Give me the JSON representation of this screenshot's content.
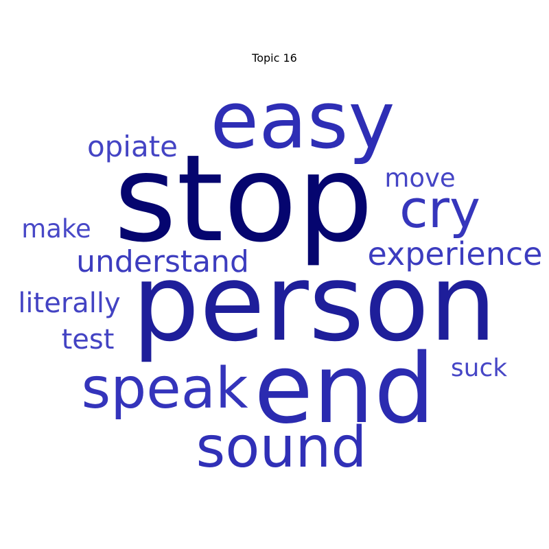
{
  "chart_data": {
    "type": "wordcloud",
    "title": "Topic 16",
    "words": [
      {
        "text": "stop",
        "weight": 1.0,
        "color": "#05056f"
      },
      {
        "text": "person",
        "weight": 0.86,
        "color": "#1e1e9a"
      },
      {
        "text": "end",
        "weight": 0.7,
        "color": "#2b2bb0"
      },
      {
        "text": "easy",
        "weight": 0.58,
        "color": "#2e2eb5"
      },
      {
        "text": "speak",
        "weight": 0.42,
        "color": "#3434bb"
      },
      {
        "text": "sound",
        "weight": 0.42,
        "color": "#3030b7"
      },
      {
        "text": "cry",
        "weight": 0.38,
        "color": "#3636bc"
      },
      {
        "text": "experience",
        "weight": 0.24,
        "color": "#3c3cbf"
      },
      {
        "text": "understand",
        "weight": 0.23,
        "color": "#3d3dbf"
      },
      {
        "text": "opiate",
        "weight": 0.2,
        "color": "#4444c4"
      },
      {
        "text": "literally",
        "weight": 0.2,
        "color": "#4343c3"
      },
      {
        "text": "test",
        "weight": 0.19,
        "color": "#4343c3"
      },
      {
        "text": "move",
        "weight": 0.17,
        "color": "#4545c5"
      },
      {
        "text": "make",
        "weight": 0.17,
        "color": "#4848c7"
      },
      {
        "text": "suck",
        "weight": 0.16,
        "color": "#4747c6"
      }
    ]
  }
}
